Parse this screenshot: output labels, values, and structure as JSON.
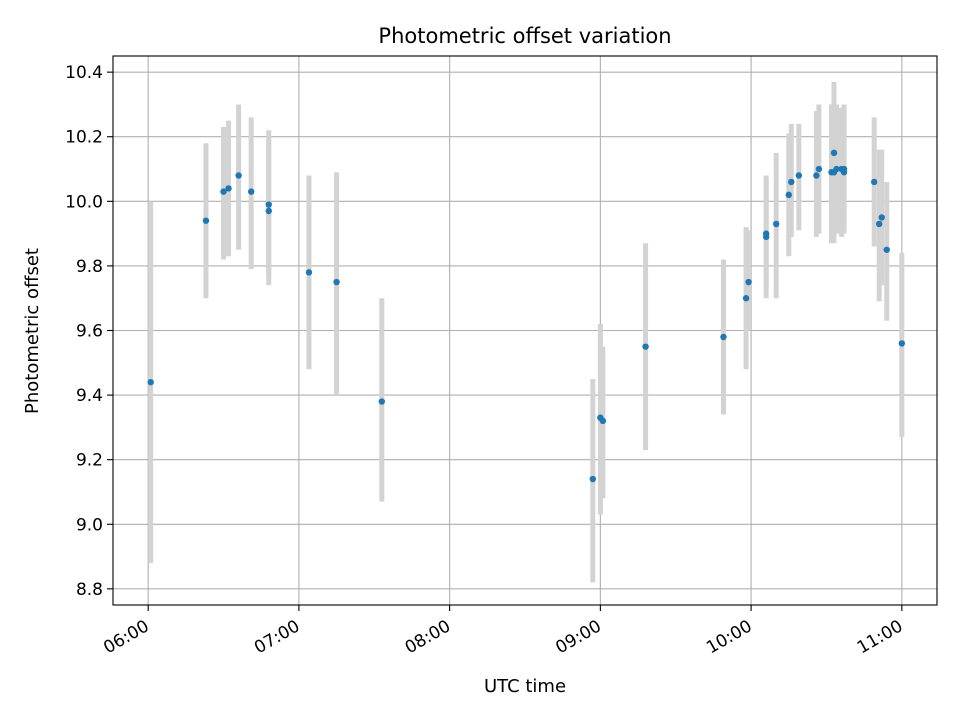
{
  "chart_data": {
    "type": "scatter",
    "title": "Photometric offset variation",
    "xlabel": "UTC time",
    "ylabel": "Photometric offset",
    "x_tick_labels": [
      "06:00",
      "07:00",
      "08:00",
      "09:00",
      "10:00",
      "11:00"
    ],
    "x_ticks": [
      "06:00",
      "07:00",
      "08:00",
      "09:00",
      "10:00",
      "11:00"
    ],
    "y_ticks": [
      "8.8",
      "9.0",
      "9.2",
      "9.4",
      "9.6",
      "9.8",
      "10.0",
      "10.2",
      "10.4"
    ],
    "xlim": [
      "05:46",
      "11:14"
    ],
    "ylim": [
      8.75,
      10.45
    ],
    "grid": true,
    "marker_color": "#1f77b4",
    "errorbar_color": "#d3d3d3",
    "series": [
      {
        "points": [
          {
            "t": "06:01",
            "y": 9.44,
            "lo": 8.88,
            "hi": 10.0
          },
          {
            "t": "06:23",
            "y": 9.94,
            "lo": 9.7,
            "hi": 10.18
          },
          {
            "t": "06:30",
            "y": 10.03,
            "lo": 9.82,
            "hi": 10.23
          },
          {
            "t": "06:32",
            "y": 10.04,
            "lo": 9.83,
            "hi": 10.25
          },
          {
            "t": "06:36",
            "y": 10.08,
            "lo": 9.85,
            "hi": 10.3
          },
          {
            "t": "06:41",
            "y": 10.03,
            "lo": 9.79,
            "hi": 10.26
          },
          {
            "t": "06:48",
            "y": 9.97,
            "lo": 9.74,
            "hi": 10.19
          },
          {
            "t": "06:48",
            "y": 9.99,
            "lo": 9.77,
            "hi": 10.22
          },
          {
            "t": "07:04",
            "y": 9.78,
            "lo": 9.48,
            "hi": 10.08
          },
          {
            "t": "07:15",
            "y": 9.75,
            "lo": 9.4,
            "hi": 10.09
          },
          {
            "t": "07:33",
            "y": 9.38,
            "lo": 9.07,
            "hi": 9.7
          },
          {
            "t": "08:57",
            "y": 9.14,
            "lo": 8.82,
            "hi": 9.45
          },
          {
            "t": "09:00",
            "y": 9.33,
            "lo": 9.03,
            "hi": 9.62
          },
          {
            "t": "09:01",
            "y": 9.32,
            "lo": 9.08,
            "hi": 9.55
          },
          {
            "t": "09:18",
            "y": 9.55,
            "lo": 9.23,
            "hi": 9.87
          },
          {
            "t": "09:49",
            "y": 9.58,
            "lo": 9.34,
            "hi": 9.82
          },
          {
            "t": "09:58",
            "y": 9.7,
            "lo": 9.48,
            "hi": 9.92
          },
          {
            "t": "09:59",
            "y": 9.75,
            "lo": 9.6,
            "hi": 9.91
          },
          {
            "t": "10:06",
            "y": 9.89,
            "lo": 9.7,
            "hi": 10.08
          },
          {
            "t": "10:06",
            "y": 9.9,
            "lo": 9.73,
            "hi": 10.07
          },
          {
            "t": "10:10",
            "y": 9.93,
            "lo": 9.7,
            "hi": 10.15
          },
          {
            "t": "10:15",
            "y": 10.02,
            "lo": 9.83,
            "hi": 10.21
          },
          {
            "t": "10:16",
            "y": 10.06,
            "lo": 9.89,
            "hi": 10.24
          },
          {
            "t": "10:19",
            "y": 10.08,
            "lo": 9.91,
            "hi": 10.24
          },
          {
            "t": "10:26",
            "y": 10.08,
            "lo": 9.89,
            "hi": 10.28
          },
          {
            "t": "10:27",
            "y": 10.1,
            "lo": 9.9,
            "hi": 10.3
          },
          {
            "t": "10:32",
            "y": 10.09,
            "lo": 9.87,
            "hi": 10.3
          },
          {
            "t": "10:33",
            "y": 10.09,
            "lo": 9.87,
            "hi": 10.29
          },
          {
            "t": "10:33",
            "y": 10.15,
            "lo": 9.92,
            "hi": 10.37
          },
          {
            "t": "10:34",
            "y": 10.1,
            "lo": 9.9,
            "hi": 10.3
          },
          {
            "t": "10:36",
            "y": 10.1,
            "lo": 9.89,
            "hi": 10.29
          },
          {
            "t": "10:37",
            "y": 10.09,
            "lo": 9.9,
            "hi": 10.3
          },
          {
            "t": "10:37",
            "y": 10.1,
            "lo": 9.91,
            "hi": 10.29
          },
          {
            "t": "10:49",
            "y": 10.06,
            "lo": 9.86,
            "hi": 10.26
          },
          {
            "t": "10:51",
            "y": 9.93,
            "lo": 9.69,
            "hi": 10.16
          },
          {
            "t": "10:52",
            "y": 9.95,
            "lo": 9.74,
            "hi": 10.16
          },
          {
            "t": "10:54",
            "y": 9.85,
            "lo": 9.63,
            "hi": 10.06
          },
          {
            "t": "11:00",
            "y": 9.56,
            "lo": 9.27,
            "hi": 9.84
          }
        ]
      }
    ]
  }
}
